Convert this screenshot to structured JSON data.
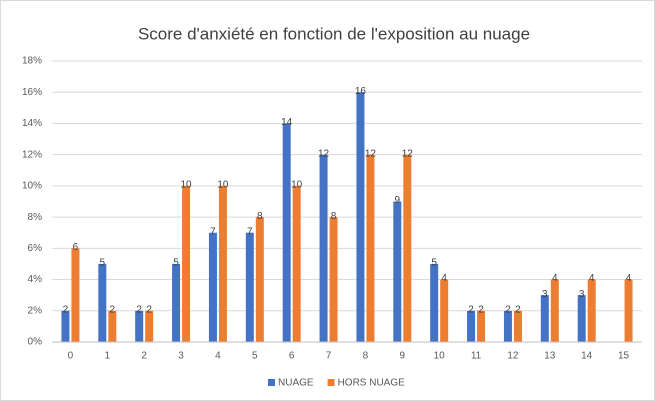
{
  "chart_data": {
    "type": "bar",
    "title": "Score d'anxiété en fonction de l'exposition au nuage",
    "categories": [
      "0",
      "1",
      "2",
      "3",
      "4",
      "5",
      "6",
      "7",
      "8",
      "9",
      "10",
      "11",
      "12",
      "13",
      "14",
      "15"
    ],
    "series": [
      {
        "name": "NUAGE",
        "color": "#4472c4",
        "values": [
          2,
          5,
          2,
          5,
          7,
          7,
          14,
          12,
          16,
          9,
          5,
          2,
          2,
          3,
          3,
          null
        ]
      },
      {
        "name": "HORS NUAGE",
        "color": "#ed7d31",
        "values": [
          6,
          2,
          2,
          10,
          10,
          8,
          10,
          8,
          12,
          12,
          4,
          2,
          2,
          4,
          4,
          4
        ]
      }
    ],
    "ylim": [
      0,
      18
    ],
    "yticks": [
      {
        "value": 0,
        "label": "0%"
      },
      {
        "value": 2,
        "label": "2%"
      },
      {
        "value": 4,
        "label": "4%"
      },
      {
        "value": 6,
        "label": "6%"
      },
      {
        "value": 8,
        "label": "8%"
      },
      {
        "value": 10,
        "label": "10%"
      },
      {
        "value": 12,
        "label": "12%"
      },
      {
        "value": 14,
        "label": "14%"
      },
      {
        "value": 16,
        "label": "16%"
      },
      {
        "value": 18,
        "label": "18%"
      }
    ],
    "grid": true,
    "legend": "bottom"
  }
}
